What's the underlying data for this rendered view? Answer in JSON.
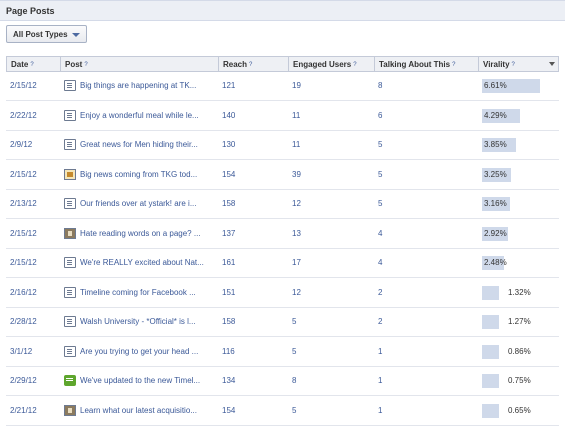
{
  "section": {
    "title": "Page Posts"
  },
  "filter": {
    "label": "All Post Types"
  },
  "columns": {
    "date": "Date",
    "post": "Post",
    "reach": "Reach",
    "engaged": "Engaged Users",
    "talking": "Talking About This",
    "virality": "Virality",
    "help": "?"
  },
  "colors": {
    "link": "#3b5998",
    "virality_bar": "#cfd9ea",
    "header_bg": "#eceff5"
  },
  "rows": [
    {
      "date": "2/15/12",
      "icon": "status-icon",
      "post": "Big things are happening at TK...",
      "reach": "121",
      "engaged": "19",
      "talking": "8",
      "virality": "6.61%",
      "virality_value": 6.61
    },
    {
      "date": "2/22/12",
      "icon": "status-icon",
      "post": "Enjoy a wonderful meal while le...",
      "reach": "140",
      "engaged": "11",
      "talking": "6",
      "virality": "4.29%",
      "virality_value": 4.29
    },
    {
      "date": "2/9/12",
      "icon": "status-icon",
      "post": "Great news for Men hiding their...",
      "reach": "130",
      "engaged": "11",
      "talking": "5",
      "virality": "3.85%",
      "virality_value": 3.85
    },
    {
      "date": "2/15/12",
      "icon": "photo-icon",
      "post": "Big news coming from TKG tod...",
      "reach": "154",
      "engaged": "39",
      "talking": "5",
      "virality": "3.25%",
      "virality_value": 3.25
    },
    {
      "date": "2/13/12",
      "icon": "status-icon",
      "post": "Our friends over at ystark! are i...",
      "reach": "158",
      "engaged": "12",
      "talking": "5",
      "virality": "3.16%",
      "virality_value": 3.16
    },
    {
      "date": "2/15/12",
      "icon": "video-icon",
      "post": "Hate reading words on a page? ...",
      "reach": "137",
      "engaged": "13",
      "talking": "4",
      "virality": "2.92%",
      "virality_value": 2.92
    },
    {
      "date": "2/15/12",
      "icon": "status-icon",
      "post": "We're REALLY excited about Nat...",
      "reach": "161",
      "engaged": "17",
      "talking": "4",
      "virality": "2.48%",
      "virality_value": 2.48
    },
    {
      "date": "2/16/12",
      "icon": "status-icon",
      "post": "Timeline coming for Facebook ...",
      "reach": "151",
      "engaged": "12",
      "talking": "2",
      "virality": "1.32%",
      "virality_value": 1.32
    },
    {
      "date": "2/28/12",
      "icon": "status-icon",
      "post": "Walsh University - *Official* is l...",
      "reach": "158",
      "engaged": "5",
      "talking": "2",
      "virality": "1.27%",
      "virality_value": 1.27
    },
    {
      "date": "3/1/12",
      "icon": "status-icon",
      "post": "Are you trying to get your head ...",
      "reach": "116",
      "engaged": "5",
      "talking": "1",
      "virality": "0.86%",
      "virality_value": 0.86
    },
    {
      "date": "2/29/12",
      "icon": "comment-icon",
      "post": "We've updated to the new Timel...",
      "reach": "134",
      "engaged": "8",
      "talking": "1",
      "virality": "0.75%",
      "virality_value": 0.75
    },
    {
      "date": "2/21/12",
      "icon": "video-icon",
      "post": "Learn what our latest acquisitio...",
      "reach": "154",
      "engaged": "5",
      "talking": "1",
      "virality": "0.65%",
      "virality_value": 0.65
    }
  ]
}
